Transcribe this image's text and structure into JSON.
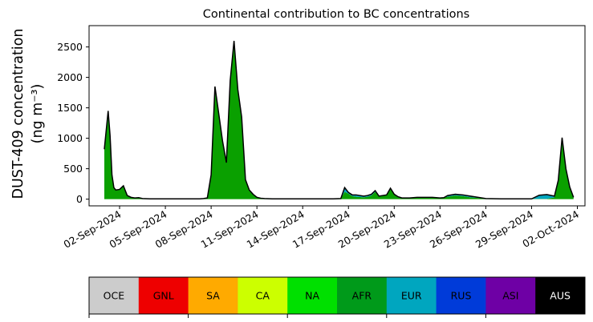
{
  "chart_data": {
    "type": "area",
    "title": "Continental contribution to BC concentrations",
    "ylabel_line1": "DUST-409 concentration",
    "ylabel_line2": "(ng m⁻³)",
    "ylim": [
      -110,
      2850
    ],
    "xlim": [
      "2024-08-31T00:00",
      "2024-10-02T12:00"
    ],
    "y_ticks": [
      0,
      500,
      1000,
      1500,
      2000,
      2500
    ],
    "x_ticks": [
      {
        "date": "2024-09-02",
        "label": "02-Sep-2024"
      },
      {
        "date": "2024-09-05",
        "label": "05-Sep-2024"
      },
      {
        "date": "2024-09-08",
        "label": "08-Sep-2024"
      },
      {
        "date": "2024-09-11",
        "label": "11-Sep-2024"
      },
      {
        "date": "2024-09-14",
        "label": "14-Sep-2024"
      },
      {
        "date": "2024-09-17",
        "label": "17-Sep-2024"
      },
      {
        "date": "2024-09-20",
        "label": "20-Sep-2024"
      },
      {
        "date": "2024-09-23",
        "label": "23-Sep-2024"
      },
      {
        "date": "2024-09-26",
        "label": "26-Sep-2024"
      },
      {
        "date": "2024-09-29",
        "label": "29-Sep-2024"
      },
      {
        "date": "2024-10-02",
        "label": "02-Oct-2024"
      }
    ],
    "x": [
      "2024-09-01T00:00",
      "2024-09-01T06:00",
      "2024-09-01T09:00",
      "2024-09-01T12:00",
      "2024-09-01T15:00",
      "2024-09-01T18:00",
      "2024-09-02T00:00",
      "2024-09-02T06:00",
      "2024-09-02T12:00",
      "2024-09-02T18:00",
      "2024-09-03T00:00",
      "2024-09-03T06:00",
      "2024-09-03T12:00",
      "2024-09-04T00:00",
      "2024-09-04T12:00",
      "2024-09-05T00:00",
      "2024-09-06T00:00",
      "2024-09-07T00:00",
      "2024-09-07T06:00",
      "2024-09-07T12:00",
      "2024-09-07T18:00",
      "2024-09-08T00:00",
      "2024-09-08T06:00",
      "2024-09-08T12:00",
      "2024-09-08T18:00",
      "2024-09-09T00:00",
      "2024-09-09T06:00",
      "2024-09-09T12:00",
      "2024-09-09T18:00",
      "2024-09-10T00:00",
      "2024-09-10T06:00",
      "2024-09-10T12:00",
      "2024-09-10T18:00",
      "2024-09-11T00:00",
      "2024-09-11T06:00",
      "2024-09-11T12:00",
      "2024-09-12T00:00",
      "2024-09-13T00:00",
      "2024-09-14T00:00",
      "2024-09-15T00:00",
      "2024-09-16T00:00",
      "2024-09-16T12:00",
      "2024-09-16T18:00",
      "2024-09-17T00:00",
      "2024-09-17T06:00",
      "2024-09-17T12:00",
      "2024-09-18T00:00",
      "2024-09-18T06:00",
      "2024-09-18T12:00",
      "2024-09-18T18:00",
      "2024-09-19T00:00",
      "2024-09-19T12:00",
      "2024-09-19T18:00",
      "2024-09-20T00:00",
      "2024-09-20T06:00",
      "2024-09-20T12:00",
      "2024-09-21T00:00",
      "2024-09-21T12:00",
      "2024-09-22T00:00",
      "2024-09-22T12:00",
      "2024-09-23T00:00",
      "2024-09-23T06:00",
      "2024-09-23T12:00",
      "2024-09-24T00:00",
      "2024-09-24T12:00",
      "2024-09-25T00:00",
      "2024-09-26T00:00",
      "2024-09-27T00:00",
      "2024-09-28T00:00",
      "2024-09-29T00:00",
      "2024-09-29T12:00",
      "2024-09-30T00:00",
      "2024-09-30T12:00",
      "2024-09-30T18:00",
      "2024-10-01T00:00",
      "2024-10-01T06:00",
      "2024-10-01T12:00",
      "2024-10-01T18:00"
    ],
    "series": [
      {
        "color": "#ff00ff",
        "values": [
          0,
          0,
          0,
          0,
          0,
          0,
          0,
          0,
          0,
          0,
          0,
          0,
          0,
          0,
          0,
          0,
          0,
          0,
          0,
          0,
          0,
          0,
          0,
          0,
          0,
          0,
          0,
          0,
          0,
          0,
          0,
          0,
          0,
          0,
          0,
          0,
          0,
          0,
          0,
          0,
          0,
          0,
          0,
          0,
          0,
          0,
          0,
          0,
          0,
          0,
          0,
          0,
          0,
          0,
          0,
          0,
          0,
          0,
          0,
          0,
          0,
          0,
          0,
          0,
          0,
          0,
          0,
          0,
          0,
          0,
          0,
          0,
          0,
          0,
          0,
          0,
          0,
          0
        ]
      },
      {
        "color": "#0aa000",
        "values": [
          820,
          1450,
          1050,
          400,
          190,
          150,
          160,
          220,
          60,
          30,
          20,
          25,
          10,
          5,
          5,
          5,
          5,
          5,
          5,
          10,
          20,
          400,
          1850,
          1400,
          950,
          600,
          1950,
          2600,
          1800,
          1350,
          320,
          150,
          80,
          30,
          15,
          10,
          5,
          5,
          5,
          5,
          5,
          10,
          120,
          90,
          50,
          40,
          30,
          40,
          60,
          120,
          50,
          70,
          180,
          80,
          40,
          20,
          20,
          30,
          30,
          30,
          20,
          25,
          40,
          60,
          50,
          30,
          10,
          5,
          5,
          5,
          5,
          5,
          30,
          300,
          1000,
          500,
          200,
          30
        ]
      },
      {
        "color": "#00a6bf",
        "values": [
          0,
          0,
          0,
          0,
          0,
          0,
          0,
          0,
          0,
          0,
          0,
          0,
          0,
          0,
          0,
          0,
          0,
          0,
          0,
          0,
          0,
          0,
          0,
          0,
          0,
          0,
          0,
          0,
          0,
          0,
          0,
          0,
          0,
          0,
          0,
          0,
          0,
          0,
          0,
          0,
          0,
          0,
          70,
          20,
          20,
          30,
          20,
          20,
          20,
          20,
          0,
          0,
          0,
          0,
          0,
          0,
          0,
          0,
          0,
          0,
          0,
          0,
          20,
          20,
          20,
          20,
          0,
          0,
          0,
          0,
          60,
          70,
          20,
          10,
          10,
          0,
          0,
          0
        ]
      },
      {
        "color": "#003bd9",
        "values": [
          0,
          0,
          0,
          0,
          0,
          0,
          0,
          0,
          0,
          0,
          0,
          0,
          0,
          0,
          0,
          0,
          0,
          0,
          0,
          0,
          0,
          0,
          0,
          0,
          0,
          0,
          0,
          0,
          0,
          0,
          0,
          0,
          0,
          0,
          0,
          0,
          0,
          0,
          0,
          0,
          0,
          0,
          0,
          0,
          0,
          0,
          0,
          0,
          0,
          0,
          0,
          0,
          0,
          0,
          0,
          0,
          0,
          0,
          0,
          0,
          0,
          0,
          0,
          0,
          0,
          0,
          0,
          0,
          0,
          0,
          0,
          0,
          0,
          0,
          0,
          0,
          0,
          0
        ]
      }
    ],
    "legend": [
      {
        "label": "OCE",
        "color": "#cccccc",
        "text_color": "#000000"
      },
      {
        "label": "GNL",
        "color": "#ee0000",
        "text_color": "#000000"
      },
      {
        "label": "SA",
        "color": "#ffaa00",
        "text_color": "#000000"
      },
      {
        "label": "CA",
        "color": "#ccff00",
        "text_color": "#000000"
      },
      {
        "label": "NA",
        "color": "#00e000",
        "text_color": "#000000"
      },
      {
        "label": "AFR",
        "color": "#009a1a",
        "text_color": "#000000"
      },
      {
        "label": "EUR",
        "color": "#00a6bf",
        "text_color": "#000000"
      },
      {
        "label": "RUS",
        "color": "#003bd9",
        "text_color": "#000000"
      },
      {
        "label": "ASI",
        "color": "#6e00a5",
        "text_color": "#000000"
      },
      {
        "label": "AUS",
        "color": "#000000",
        "text_color": "#ffffff"
      }
    ]
  }
}
